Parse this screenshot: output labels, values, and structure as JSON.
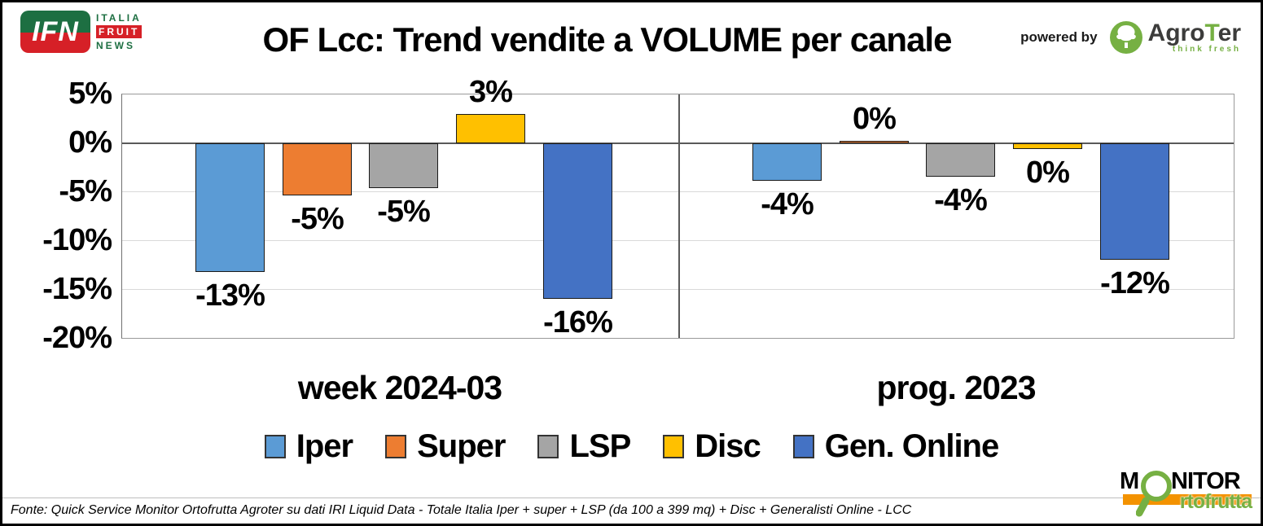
{
  "header": {
    "title": "OF Lcc: Trend vendite a VOLUME per canale",
    "ifn_logo": {
      "abbr": "IFN",
      "line1": "ITALIA",
      "line2": "FRUIT",
      "line3": "NEWS"
    },
    "powered_by": "powered by",
    "agroter_logo": {
      "agro": "Agro",
      "t": "T",
      "er": "er",
      "tagline": "think fresh"
    }
  },
  "chart_data": {
    "type": "bar",
    "title": "OF Lcc: Trend vendite a VOLUME per canale",
    "groups": [
      "week 2024-03",
      "prog. 2023"
    ],
    "categories": [
      "Iper",
      "Super",
      "LSP",
      "Disc",
      "Gen. Online"
    ],
    "series": [
      {
        "name": "Iper",
        "color": "#5B9BD5",
        "values": [
          -13,
          -4
        ],
        "labels": [
          "-13%",
          "-4%"
        ],
        "drawn": [
          -13.2,
          -3.8
        ]
      },
      {
        "name": "Super",
        "color": "#ED7D31",
        "values": [
          -5,
          0
        ],
        "labels": [
          "-5%",
          "0%"
        ],
        "drawn": [
          -5.3,
          0.25
        ]
      },
      {
        "name": "LSP",
        "color": "#A5A5A5",
        "values": [
          -5,
          -4
        ],
        "labels": [
          "-5%",
          "-4%"
        ],
        "drawn": [
          -4.6,
          -3.4
        ]
      },
      {
        "name": "Disc",
        "color": "#FFC000",
        "values": [
          3,
          0
        ],
        "labels": [
          "3%",
          "0%"
        ],
        "drawn": [
          3,
          -0.55
        ]
      },
      {
        "name": "Gen. Online",
        "color": "#4472C4",
        "values": [
          -16,
          -12
        ],
        "labels": [
          "-16%",
          "-12%"
        ],
        "drawn": [
          -15.9,
          -11.9
        ]
      }
    ],
    "unit": "%",
    "y_ticks": [
      "5%",
      "0%",
      "-5%",
      "-10%",
      "-15%",
      "-20%"
    ],
    "ylim": [
      -20,
      5
    ],
    "grid": true,
    "legend_position": "bottom"
  },
  "footer": {
    "source": "Fonte: Quick Service Monitor Ortofrutta Agroter su dati IRI Liquid Data - Totale Italia Iper + super + LSP (da 100 a 399 mq) + Disc + Generalisti Online - LCC"
  },
  "monitor_logo": {
    "m": "M",
    "nitor": "NITOR",
    "sub": "rtofrutta"
  },
  "colors": {
    "ifn_green": "#1d6f42",
    "ifn_red": "#d62027",
    "agroter_green": "#76b043",
    "monitor_orange": "#f39200",
    "grid": "#d9d9d9",
    "axis": "#595959"
  }
}
